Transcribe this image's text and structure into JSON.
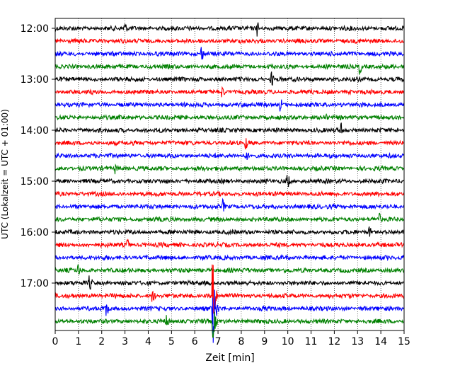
{
  "chart_data": {
    "type": "line",
    "subtype": "seismogram-helicorder",
    "xlabel": "Zeit  [min]",
    "ylabel": "UTC (Lokalzeit = UTC + 01:00)",
    "xlim": [
      0,
      15
    ],
    "x_ticks": [
      "0",
      "1",
      "2",
      "3",
      "4",
      "5",
      "6",
      "7",
      "8",
      "9",
      "10",
      "11",
      "12",
      "13",
      "14",
      "15"
    ],
    "y_ticks": [
      "12:00",
      "13:00",
      "14:00",
      "15:00",
      "16:00",
      "17:00"
    ],
    "vertical_grid": "dotted",
    "rows": 24,
    "row_interval_min": 15,
    "start_time": "12:00",
    "trace_colors": [
      "#000000",
      "#ff0000",
      "#0000ff",
      "#008000"
    ],
    "events": [
      {
        "row": 0,
        "x": 3.0,
        "amp": 0.6
      },
      {
        "row": 0,
        "x": 8.7,
        "amp": 0.7
      },
      {
        "row": 2,
        "x": 6.3,
        "amp": 0.7
      },
      {
        "row": 3,
        "x": 13.1,
        "amp": 0.7
      },
      {
        "row": 4,
        "x": 9.3,
        "amp": 0.7
      },
      {
        "row": 5,
        "x": 7.2,
        "amp": 0.5
      },
      {
        "row": 6,
        "x": 9.7,
        "amp": 0.6
      },
      {
        "row": 7,
        "x": 11.6,
        "amp": 0.5
      },
      {
        "row": 8,
        "x": 12.3,
        "amp": 0.7
      },
      {
        "row": 9,
        "x": 8.2,
        "amp": 0.6
      },
      {
        "row": 10,
        "x": 8.2,
        "amp": 0.6
      },
      {
        "row": 11,
        "x": 2.6,
        "amp": 0.5
      },
      {
        "row": 12,
        "x": 10.0,
        "amp": 0.7
      },
      {
        "row": 14,
        "x": 7.2,
        "amp": 0.7
      },
      {
        "row": 15,
        "x": 13.9,
        "amp": 0.8
      },
      {
        "row": 16,
        "x": 13.5,
        "amp": 0.6
      },
      {
        "row": 17,
        "x": 3.1,
        "amp": 0.6
      },
      {
        "row": 19,
        "x": 1.0,
        "amp": 0.6
      },
      {
        "row": 20,
        "x": 1.5,
        "amp": 0.7
      },
      {
        "row": 21,
        "x": 4.2,
        "amp": 0.6
      },
      {
        "row": 21,
        "x": 6.8,
        "amp": 2.5
      },
      {
        "row": 22,
        "x": 2.2,
        "amp": 0.8
      },
      {
        "row": 22,
        "x": 6.8,
        "amp": 3.0
      },
      {
        "row": 23,
        "x": 4.8,
        "amp": 0.6
      },
      {
        "row": 23,
        "x": 6.8,
        "amp": 1.4
      }
    ]
  }
}
